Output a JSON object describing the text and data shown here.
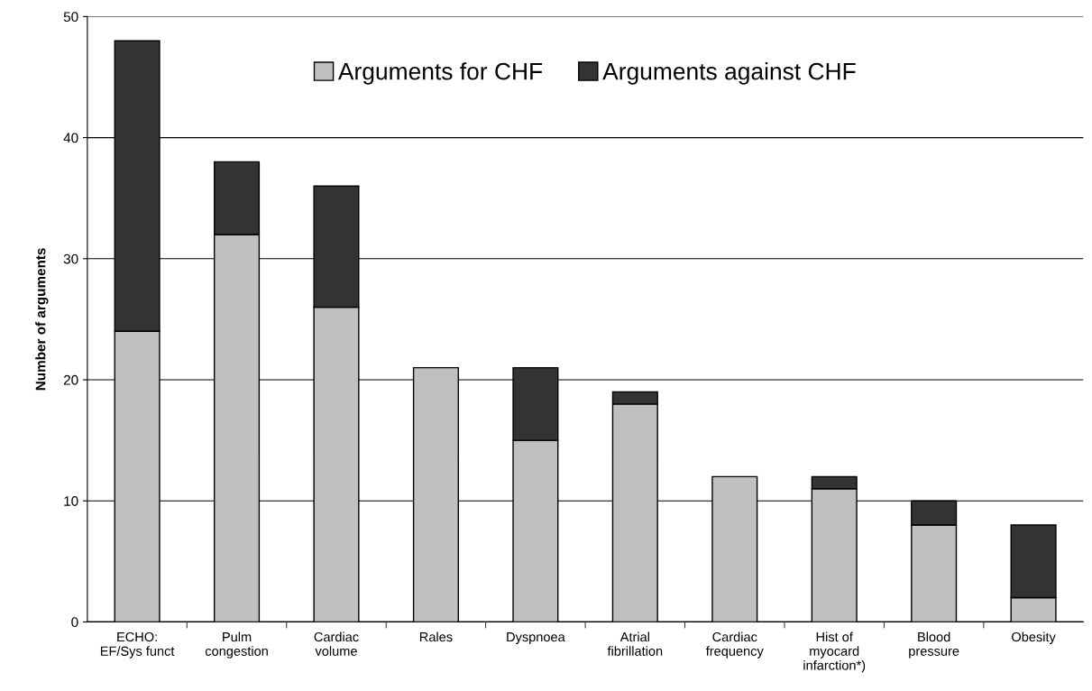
{
  "chart_data": {
    "type": "bar",
    "stacked": true,
    "ylabel": "Number of arguments",
    "categories": [
      "ECHO:\nEF/Sys funct",
      "Pulm\ncongestion",
      "Cardiac\nvolume",
      "Rales",
      "Dyspnoea",
      "Atrial\nfibrillation",
      "Cardiac\nfrequency",
      "Hist of\nmyocard\ninfarction*)",
      "Blood\npressure",
      "Obesity"
    ],
    "series": [
      {
        "name": "Arguments for CHF",
        "color": "#c0c0c0",
        "values": [
          24,
          32,
          26,
          21,
          15,
          18,
          12,
          11,
          8,
          2
        ]
      },
      {
        "name": "Arguments against CHF",
        "color": "#333333",
        "values": [
          24,
          6,
          10,
          0,
          6,
          1,
          0,
          1,
          2,
          6
        ]
      }
    ],
    "ylim": [
      0,
      50
    ],
    "yticks": [
      0,
      10,
      20,
      30,
      40,
      50
    ],
    "grid": "y",
    "legend": "top"
  }
}
